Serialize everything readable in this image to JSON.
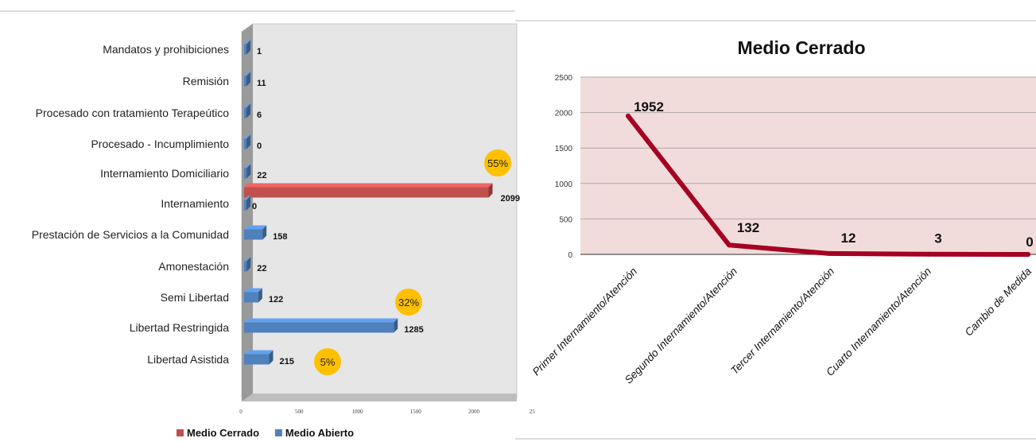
{
  "chart_data": [
    {
      "type": "bar",
      "orientation": "horizontal",
      "categories": [
        "Mandatos y prohibiciones",
        "Remisión",
        "Procesado con tratamiento Terapeútico",
        "Procesado - Incumplimiento",
        "Internamiento Domiciliario ",
        "Internamiento",
        "Prestación de Servicios a la Comunidad",
        "Amonestación",
        "Semi Libertad",
        "Libertad Restringida",
        "Libertad Asistida"
      ],
      "series": [
        {
          "name": "Medio Cerrado",
          "color": "#c0504d",
          "values": [
            null,
            null,
            null,
            null,
            null,
            2099,
            null,
            null,
            null,
            null,
            null
          ]
        },
        {
          "name": "Medio Abierto",
          "color": "#4f81bd",
          "values": [
            1,
            11,
            6,
            0,
            22,
            0,
            158,
            22,
            122,
            1285,
            215
          ]
        }
      ],
      "value_labels": [
        "1",
        "11",
        "6",
        "0",
        "22",
        "2099",
        "0",
        "158",
        "22",
        "122",
        "1285",
        "215"
      ],
      "x_ticks": [
        "0",
        "500",
        "1000",
        "1500",
        "2000",
        "25"
      ],
      "xlim": [
        0,
        2500
      ],
      "legend": "bottom",
      "annotations": [
        "55%",
        "32%",
        "5%"
      ]
    },
    {
      "type": "line",
      "title": "Medio Cerrado",
      "categories": [
        "Primer Internamiento/Atención",
        "Segundo Internamiento/Atención",
        "Tercer Internamiento/Atención",
        "Cuarto Internamiento/Atención",
        "Cambio de Medida"
      ],
      "series": [
        {
          "color": "#a50021",
          "values": [
            1952,
            132,
            12,
            3,
            0
          ]
        }
      ],
      "y_ticks": [
        "0",
        "500",
        "1000",
        "1500",
        "2000",
        "2500"
      ],
      "ylim": [
        0,
        2500
      ],
      "grid": true,
      "background_color": "#f2dcdb"
    }
  ]
}
